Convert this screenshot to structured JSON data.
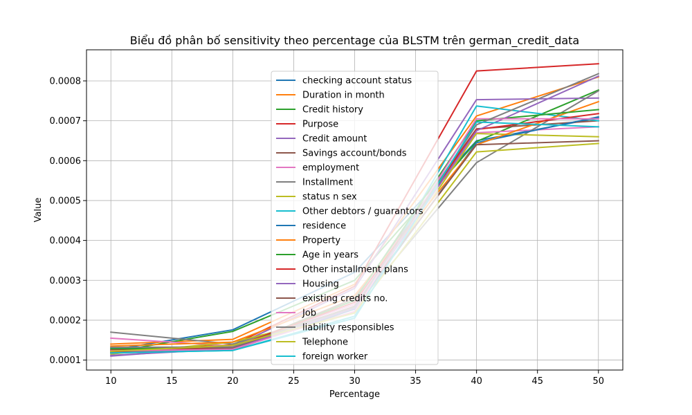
{
  "chart_data": {
    "type": "line",
    "title": "Biểu đồ phân bố sensitivity theo percentage của BLSTM trên german_credit_data",
    "xlabel": "Percentage",
    "ylabel": "Value",
    "x": [
      10,
      20,
      30,
      40,
      50
    ],
    "xlim": [
      8,
      52
    ],
    "ylim": [
      7.5e-05,
      0.000878
    ],
    "xticks": [
      10,
      15,
      20,
      25,
      30,
      35,
      40,
      45,
      50
    ],
    "xtick_labels": [
      "10",
      "15",
      "20",
      "25",
      "30",
      "35",
      "40",
      "45",
      "50"
    ],
    "yticks": [
      0.0001,
      0.0002,
      0.0003,
      0.0004,
      0.0005,
      0.0006,
      0.0007,
      0.0008
    ],
    "ytick_labels": [
      "0.0001",
      "0.0002",
      "0.0003",
      "0.0004",
      "0.0005",
      "0.0006",
      "0.0007",
      "0.0008"
    ],
    "grid": true,
    "legend_position": "center",
    "series": [
      {
        "name": "checking account status",
        "color": "#1f77b4",
        "values": [
          0.000125,
          0.000176,
          0.00032,
          0.00065,
          0.000707
        ]
      },
      {
        "name": "Duration in month",
        "color": "#ff7f0e",
        "values": [
          0.00014,
          0.000152,
          0.00029,
          0.000712,
          0.00081
        ]
      },
      {
        "name": "Credit history",
        "color": "#2ca02c",
        "values": [
          0.00012,
          0.000172,
          0.0003,
          0.000648,
          0.000777
        ]
      },
      {
        "name": "Purpose",
        "color": "#d62728",
        "values": [
          0.000125,
          0.000138,
          0.000285,
          0.000825,
          0.000843
        ]
      },
      {
        "name": "Credit amount",
        "color": "#9467bd",
        "values": [
          0.00011,
          0.000133,
          0.00028,
          0.000753,
          0.000757
        ]
      },
      {
        "name": "Savings account/bonds",
        "color": "#8c564b",
        "values": [
          0.000122,
          0.000128,
          0.000255,
          0.00068,
          0.0007
        ]
      },
      {
        "name": "employment",
        "color": "#e377c2",
        "values": [
          0.000155,
          0.000135,
          0.00024,
          0.00067,
          0.000685
        ]
      },
      {
        "name": " Installment",
        "color": "#7f7f7f",
        "values": [
          0.00017,
          0.00014,
          0.000232,
          0.000595,
          0.000775
        ]
      },
      {
        "name": "status n sex",
        "color": "#bcbd22",
        "values": [
          0.000115,
          0.000145,
          0.00022,
          0.000668,
          0.00066
        ]
      },
      {
        "name": " Other debtors / guarantors",
        "color": "#17becf",
        "values": [
          0.000118,
          0.000124,
          0.00021,
          0.000737,
          0.0007
        ]
      },
      {
        "name": "residence",
        "color": "#1f77b4",
        "values": [
          0.00013,
          0.000126,
          0.000228,
          0.000645,
          0.00071
        ]
      },
      {
        "name": "Property",
        "color": "#ff7f0e",
        "values": [
          0.000135,
          0.000145,
          0.000262,
          0.00064,
          0.000748
        ]
      },
      {
        "name": "Age in years",
        "color": "#2ca02c",
        "values": [
          0.000128,
          0.00013,
          0.00025,
          0.0007,
          0.000728
        ]
      },
      {
        "name": "Other installment plans",
        "color": "#d62728",
        "values": [
          0.00012,
          0.000132,
          0.000245,
          0.000678,
          0.000718
        ]
      },
      {
        "name": "Housing",
        "color": "#9467bd",
        "values": [
          0.000112,
          0.000128,
          0.00023,
          0.000675,
          0.000812
        ]
      },
      {
        "name": "existing credits no.",
        "color": "#8c564b",
        "values": [
          0.000118,
          0.000131,
          0.000235,
          0.00064,
          0.00065
        ]
      },
      {
        "name": "Job",
        "color": "#e377c2",
        "values": [
          0.000123,
          0.000127,
          0.000222,
          0.000705,
          0.000705
        ]
      },
      {
        "name": "liability responsibles",
        "color": "#7f7f7f",
        "values": [
          0.000132,
          0.000133,
          0.000233,
          0.00069,
          0.000818
        ]
      },
      {
        "name": "Telephone",
        "color": "#bcbd22",
        "values": [
          0.000122,
          0.000137,
          0.000218,
          0.000622,
          0.000643
        ]
      },
      {
        "name": "foreign worker",
        "color": "#17becf",
        "values": [
          0.000118,
          0.000124,
          0.000205,
          0.000697,
          0.000685
        ]
      }
    ]
  }
}
